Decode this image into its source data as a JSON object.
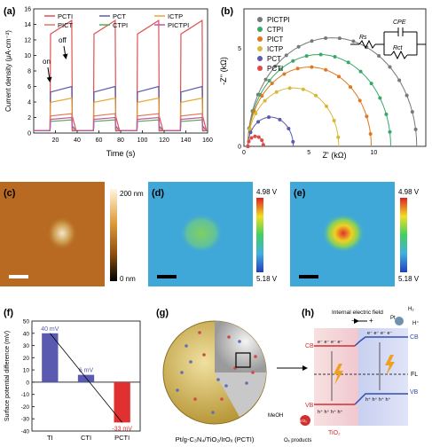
{
  "panels": {
    "a": {
      "label": "(a)",
      "xlabel": "Time (s)",
      "ylabel": "Current density (μA·cm⁻²)",
      "on_label": "on",
      "off_label": "off"
    },
    "b": {
      "label": "(b)",
      "xlabel": "Z' (kΩ)",
      "ylabel": "-Z'' (kΩ)",
      "circuit": {
        "rs": "Rs",
        "rct": "Rct",
        "cpe": "CPE"
      }
    },
    "c": {
      "label": "(c)",
      "scale_top": "200 nm",
      "scale_bottom": "0 nm"
    },
    "d": {
      "label": "(d)",
      "scale_top": "4.98 V",
      "scale_bottom": "5.18 V"
    },
    "e": {
      "label": "(e)",
      "scale_top": "4.98 V",
      "scale_bottom": "5.18 V"
    },
    "f": {
      "label": "(f)"
    },
    "g": {
      "label": "(g)",
      "caption": "Pt/g-C₃N₄/TiO₂/IrOₓ (PCTI)"
    },
    "h": {
      "label": "(h)",
      "field_label": "Internal electric field",
      "minus": "−",
      "plus": "+",
      "pt": "Pt",
      "h2": "H₂",
      "hplus": "H⁺",
      "cb_left": "CB",
      "vb_left": "VB",
      "cb_right": "CB",
      "vb_right": "VB",
      "fl": "FL",
      "tio2": "TiO₂",
      "gc3n4": "g-C₃N₄",
      "meoh": "MeOH",
      "irox": "IrOₓ",
      "ox_products": "Oₓ products",
      "electrons": "e⁻ e⁻ e⁻ e⁻",
      "holes": "h⁺ h⁺ h⁺ h⁺"
    }
  },
  "chart_data": [
    {
      "type": "line",
      "title": "",
      "xlabel": "Time (s)",
      "ylabel": "Current density (μA·cm⁻²)",
      "xlim": [
        0,
        160
      ],
      "ylim": [
        0,
        16
      ],
      "xticks": [
        20,
        40,
        60,
        80,
        100,
        120,
        140,
        160
      ],
      "yticks": [
        0,
        2,
        4,
        6,
        8,
        10,
        12,
        14,
        16
      ],
      "on_intervals": [
        [
          15,
          35
        ],
        [
          55,
          75
        ],
        [
          95,
          115
        ],
        [
          135,
          155
        ]
      ],
      "legend": "top",
      "series": [
        {
          "name": "PCTI",
          "color": "#e05050",
          "on_value": 14.5
        },
        {
          "name": "PCT",
          "color": "#5a5aa8",
          "on_value": 6.0
        },
        {
          "name": "ICTP",
          "color": "#e8a838",
          "on_value": 4.5
        },
        {
          "name": "PICT",
          "color": "#e07860",
          "on_value": 2.5
        },
        {
          "name": "CTPI",
          "color": "#58a858",
          "on_value": 1.7
        },
        {
          "name": "PICTPI",
          "color": "#c058a8",
          "on_value": 2.0
        }
      ]
    },
    {
      "type": "scatter",
      "title": "",
      "xlabel": "Z' (kΩ)",
      "ylabel": "-Z'' (kΩ)",
      "xlim": [
        0,
        14
      ],
      "ylim": [
        0,
        7
      ],
      "xticks": [
        0,
        5,
        10
      ],
      "yticks": [
        0,
        5
      ],
      "legend": "top-left",
      "series": [
        {
          "name": "PICTPI",
          "color": "#787878",
          "diameter": 13.0
        },
        {
          "name": "CTPI",
          "color": "#38a868",
          "diameter": 11.0
        },
        {
          "name": "PICT",
          "color": "#e07820",
          "diameter": 9.5
        },
        {
          "name": "ICTP",
          "color": "#d8b838",
          "diameter": 7.0
        },
        {
          "name": "PCT",
          "color": "#5a5ab0",
          "diameter": 3.5
        },
        {
          "name": "PCTI",
          "color": "#e04848",
          "diameter": 1.2
        }
      ]
    },
    {
      "type": "bar",
      "title": "",
      "xlabel": "",
      "ylabel": "Surface potential difference (mV)",
      "categories": [
        "TI",
        "CTI",
        "PCTI"
      ],
      "values": [
        40,
        6,
        -33
      ],
      "value_labels": [
        "40 mV",
        "6 mV",
        "-33 mV"
      ],
      "colors": [
        "#5a5ab0",
        "#5a5ab0",
        "#e03030"
      ],
      "ylim": [
        -40,
        50
      ],
      "yticks": [
        -40,
        -30,
        -20,
        -10,
        0,
        10,
        20,
        30,
        40,
        50
      ]
    }
  ]
}
